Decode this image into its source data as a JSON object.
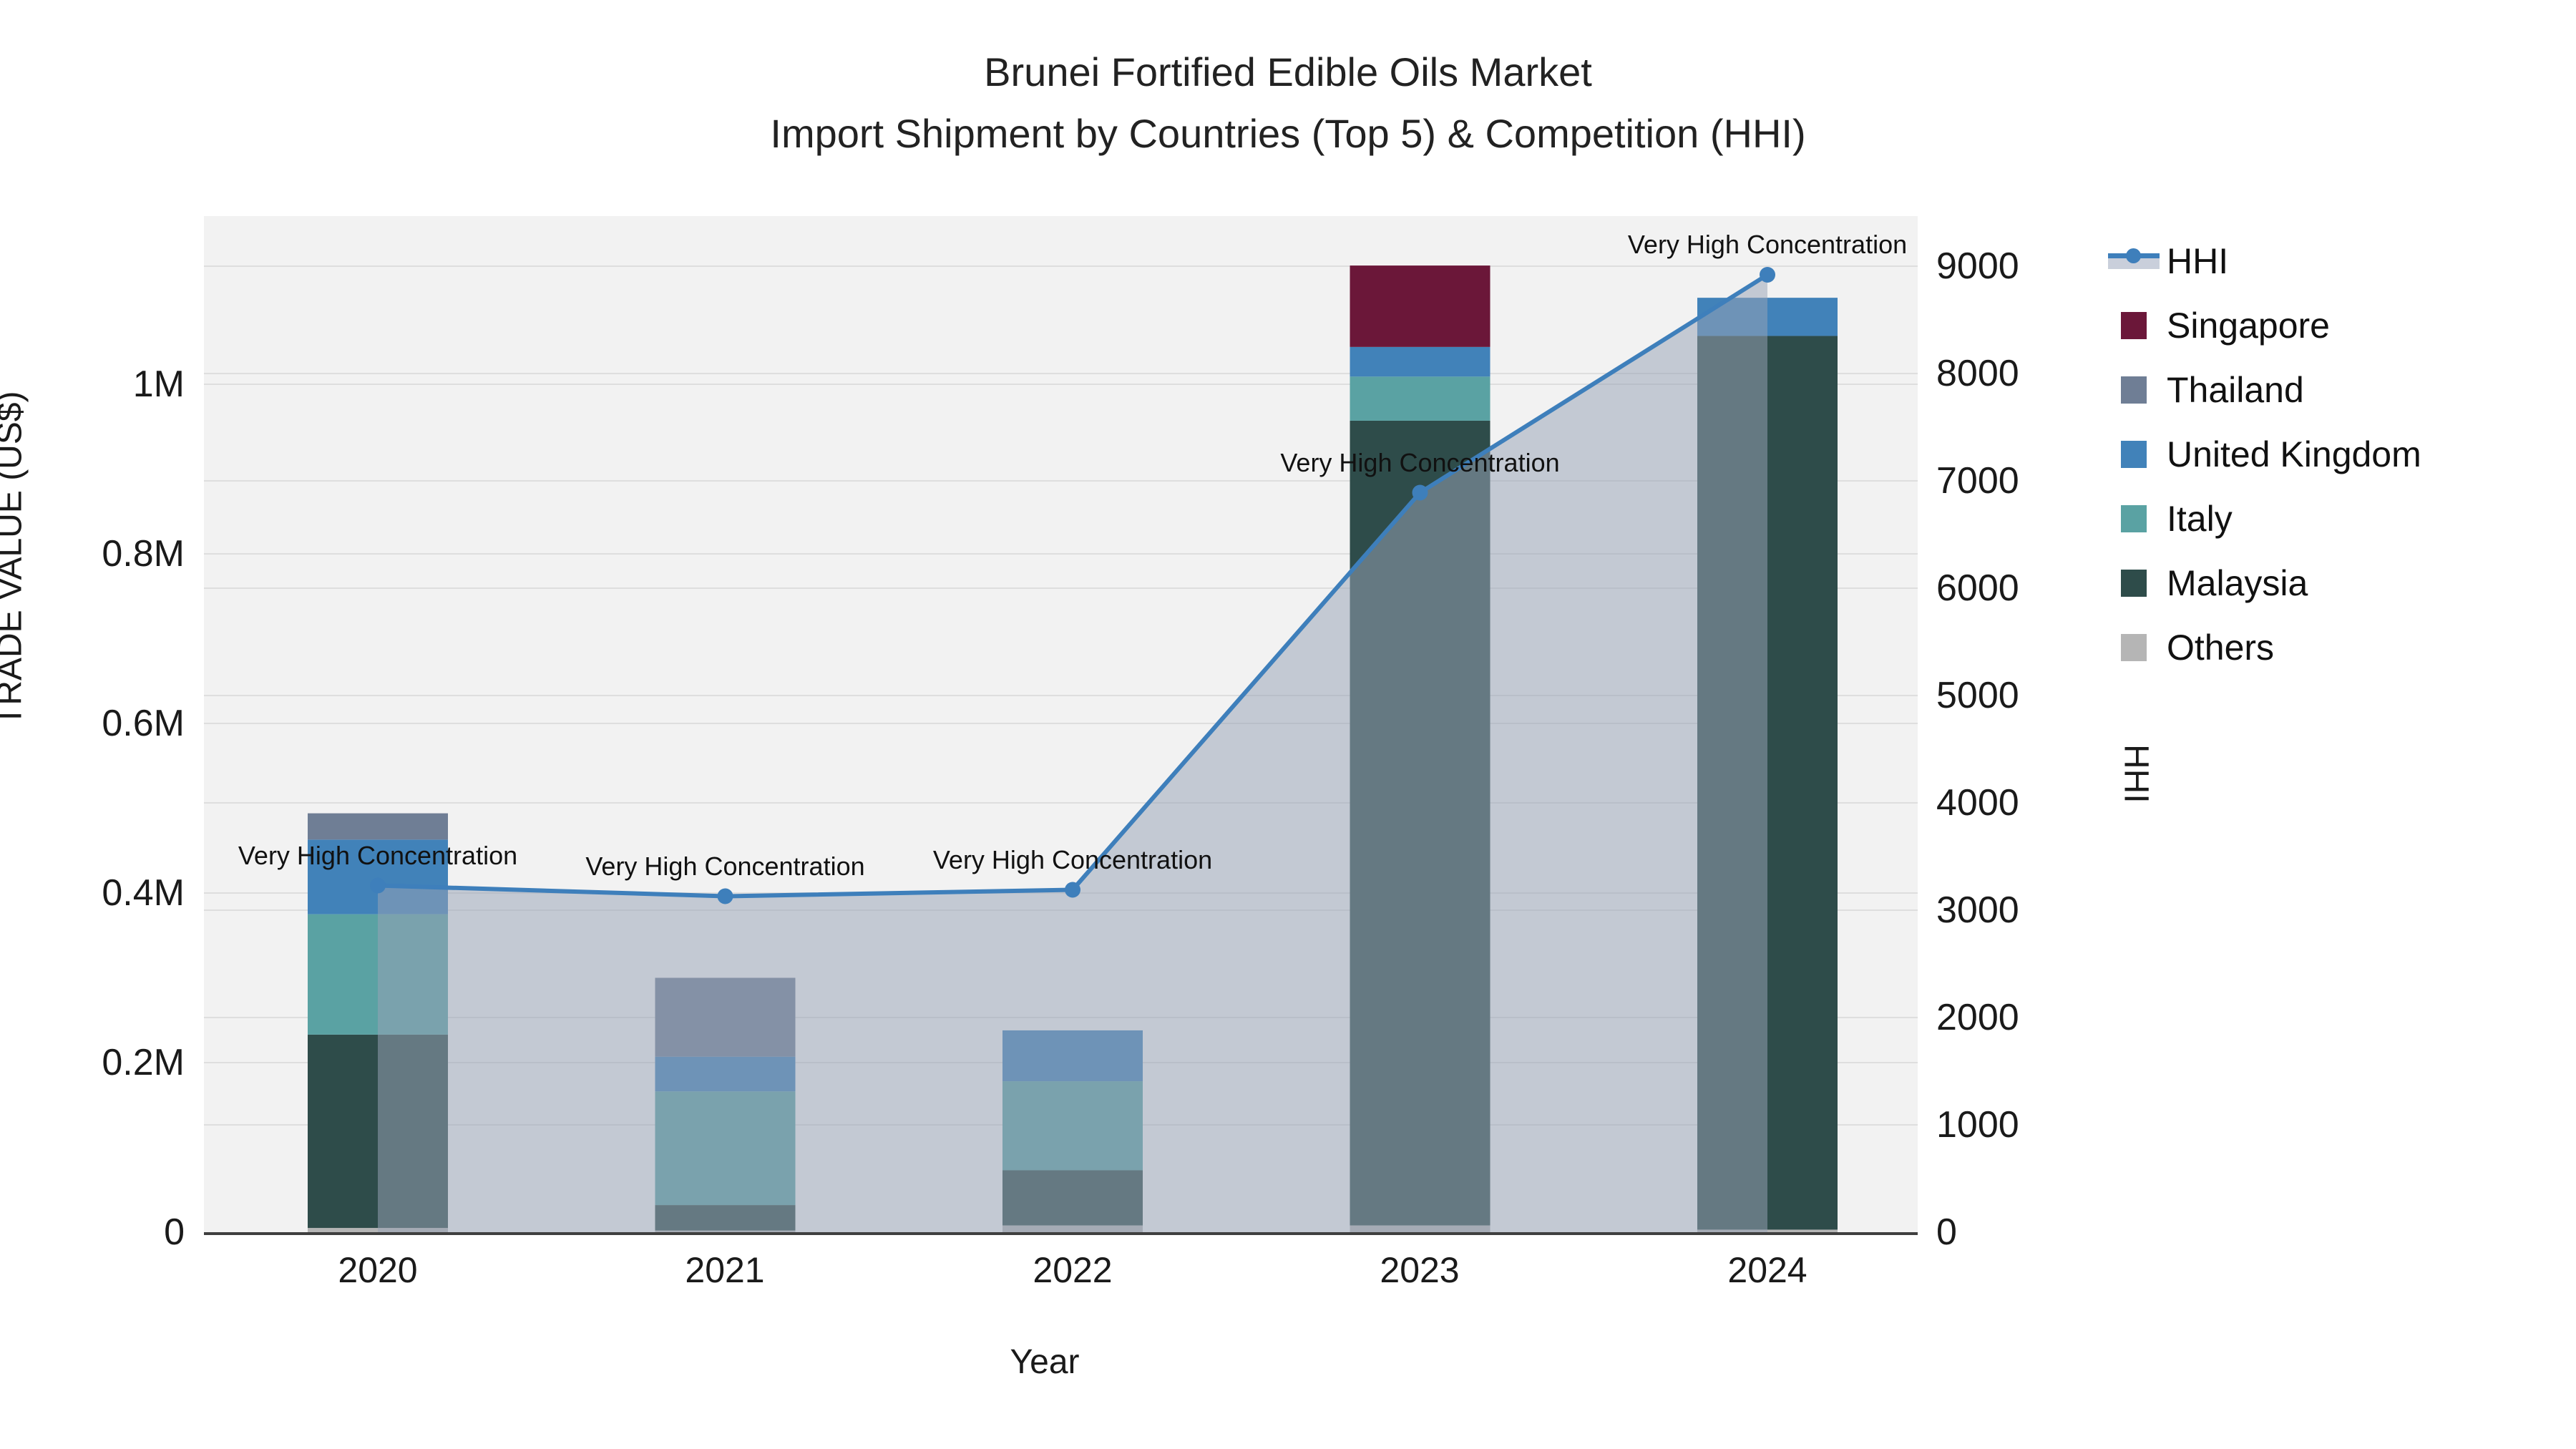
{
  "chart_data": {
    "type": "combo: stacked bar (trade value) + line with area fill (HHI)",
    "title": "Brunei Fortified Edible Oils Market",
    "subtitle": "Import Shipment by Countries (Top 5) & Competition (HHI)",
    "x": {
      "label": "Year",
      "categories": [
        "2020",
        "2021",
        "2022",
        "2023",
        "2024"
      ]
    },
    "y_left": {
      "label": "TRADE VALUE (US$)",
      "tick_labels": [
        "0",
        "0.2M",
        "0.4M",
        "0.6M",
        "0.8M",
        "1M"
      ],
      "tick_values": [
        0,
        200000,
        400000,
        600000,
        800000,
        1000000
      ],
      "range": [
        0,
        1198000
      ],
      "grid": true
    },
    "y_right": {
      "label": "HHI",
      "tick_labels": [
        "0",
        "1000",
        "2000",
        "3000",
        "4000",
        "5000",
        "6000",
        "7000",
        "8000",
        "9000"
      ],
      "tick_values": [
        0,
        1000,
        2000,
        3000,
        4000,
        5000,
        6000,
        7000,
        8000,
        9000
      ],
      "range": [
        0,
        9470
      ],
      "grid": true
    },
    "stack_order_bottom_to_top": [
      "Others",
      "Malaysia",
      "Italy",
      "United Kingdom",
      "Thailand",
      "Singapore"
    ],
    "series": [
      {
        "name": "Others",
        "color": "#b5b5b5",
        "values": [
          5000,
          2000,
          8000,
          8000,
          3000
        ]
      },
      {
        "name": "Malaysia",
        "color": "#2e4c4a",
        "values": [
          228000,
          30000,
          65000,
          949000,
          1054000
        ]
      },
      {
        "name": "Italy",
        "color": "#5aa2a3",
        "values": [
          142000,
          134000,
          105000,
          52000,
          0
        ]
      },
      {
        "name": "United Kingdom",
        "color": "#4182b9",
        "values": [
          88000,
          41000,
          60000,
          35000,
          45000
        ]
      },
      {
        "name": "Thailand",
        "color": "#6f7e95",
        "values": [
          31000,
          93000,
          0,
          0,
          0
        ]
      },
      {
        "name": "Singapore",
        "color": "#6b1739",
        "values": [
          0,
          0,
          0,
          96000,
          0
        ]
      }
    ],
    "hhi": {
      "name": "HHI",
      "line_color": "#3e7fbb",
      "marker_color": "#3e7fbb",
      "fill_color": "rgba(151,163,183,0.52)",
      "values": [
        3230,
        3130,
        3190,
        6890,
        8920
      ]
    },
    "annotations": [
      {
        "text": "Very High Concentration"
      },
      {
        "text": "Very High Concentration"
      },
      {
        "text": "Very High Concentration"
      },
      {
        "text": "Very High Concentration"
      },
      {
        "text": "Very High Concentration"
      }
    ],
    "legend": {
      "position": "right",
      "items": [
        {
          "label": "HHI",
          "color": "#3e7fbb",
          "kind": "line"
        },
        {
          "label": "Singapore",
          "color": "#6b1739",
          "kind": "square"
        },
        {
          "label": "Thailand",
          "color": "#6f7e95",
          "kind": "square"
        },
        {
          "label": "United Kingdom",
          "color": "#4182b9",
          "kind": "square"
        },
        {
          "label": "Italy",
          "color": "#5aa2a3",
          "kind": "square"
        },
        {
          "label": "Malaysia",
          "color": "#2e4c4a",
          "kind": "square"
        },
        {
          "label": "Others",
          "color": "#b5b5b5",
          "kind": "square"
        }
      ]
    },
    "style": {
      "plot_bg": "#f2f2f2",
      "grid_color": "#dedede",
      "axis_line_color": "#3f3f3f",
      "text_color": "#1a1a1a"
    }
  }
}
